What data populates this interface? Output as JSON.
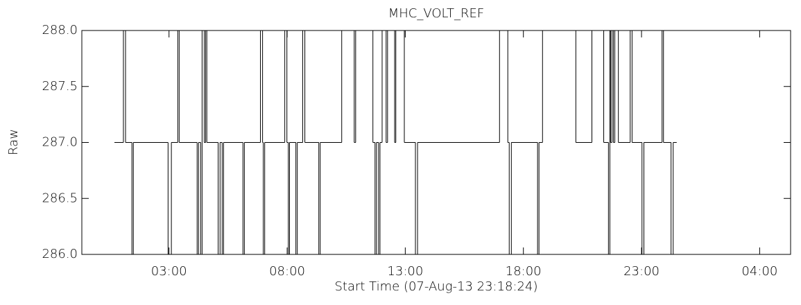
{
  "chart_data": {
    "type": "line",
    "step": "post",
    "title": "MHC_VOLT_REF",
    "xlabel": "Start Time (07-Aug-13 23:18:24)",
    "ylabel": "Raw",
    "color": "#000000",
    "xlim": [
      23.31,
      53.31
    ],
    "xticks": [
      {
        "value": 27,
        "label": "03:00"
      },
      {
        "value": 32,
        "label": "08:00"
      },
      {
        "value": 37,
        "label": "13:00"
      },
      {
        "value": 42,
        "label": "18:00"
      },
      {
        "value": 47,
        "label": "23:00"
      },
      {
        "value": 52,
        "label": "04:00"
      }
    ],
    "ylim": [
      286,
      288
    ],
    "yticks": [
      {
        "value": 286,
        "label": "286.0"
      },
      {
        "value": 286.5,
        "label": "286.5"
      },
      {
        "value": 287,
        "label": "287.0"
      },
      {
        "value": 287.5,
        "label": "287.5"
      },
      {
        "value": 288,
        "label": "288.0"
      }
    ],
    "x": [
      24.69,
      25.07,
      25.16,
      25.43,
      25.49,
      26.96,
      27.1,
      27.37,
      27.43,
      28.19,
      28.25,
      28.34,
      28.4,
      28.49,
      28.55,
      28.6,
      29.08,
      29.16,
      29.25,
      29.31,
      30.13,
      30.19,
      30.87,
      30.96,
      30.99,
      31.05,
      31.9,
      31.99,
      32.05,
      32.1,
      32.37,
      32.43,
      32.66,
      32.75,
      33.34,
      33.4,
      34.31,
      34.84,
      34.9,
      35.63,
      35.72,
      35.78,
      35.87,
      35.93,
      36.02,
      36.19,
      36.25,
      36.55,
      36.6,
      36.96,
      37.43,
      37.52,
      40.99,
      41.34,
      41.4,
      41.49,
      42.6,
      42.66,
      42.81,
      44.22,
      44.9,
      45.4,
      45.6,
      45.66,
      45.69,
      45.75,
      45.81,
      45.87,
      46.02,
      46.52,
      46.6,
      47.02,
      47.1,
      47.87,
      47.93,
      48.25,
      48.34,
      48.49
    ],
    "values": [
      287,
      288,
      287,
      286,
      287,
      286,
      287,
      288,
      287,
      286,
      287,
      286,
      288,
      287,
      288,
      287,
      286,
      287,
      286,
      287,
      286,
      287,
      288,
      287,
      286,
      287,
      288,
      287,
      286,
      287,
      286,
      287,
      288,
      287,
      286,
      287,
      288,
      287,
      288,
      287,
      286,
      287,
      286,
      287,
      288,
      287,
      288,
      287,
      288,
      287,
      286,
      287,
      288,
      287,
      286,
      287,
      286,
      287,
      288,
      287,
      288,
      287,
      286,
      288,
      287,
      288,
      287,
      288,
      287,
      288,
      287,
      286,
      287,
      288,
      287,
      286,
      287,
      287
    ]
  }
}
